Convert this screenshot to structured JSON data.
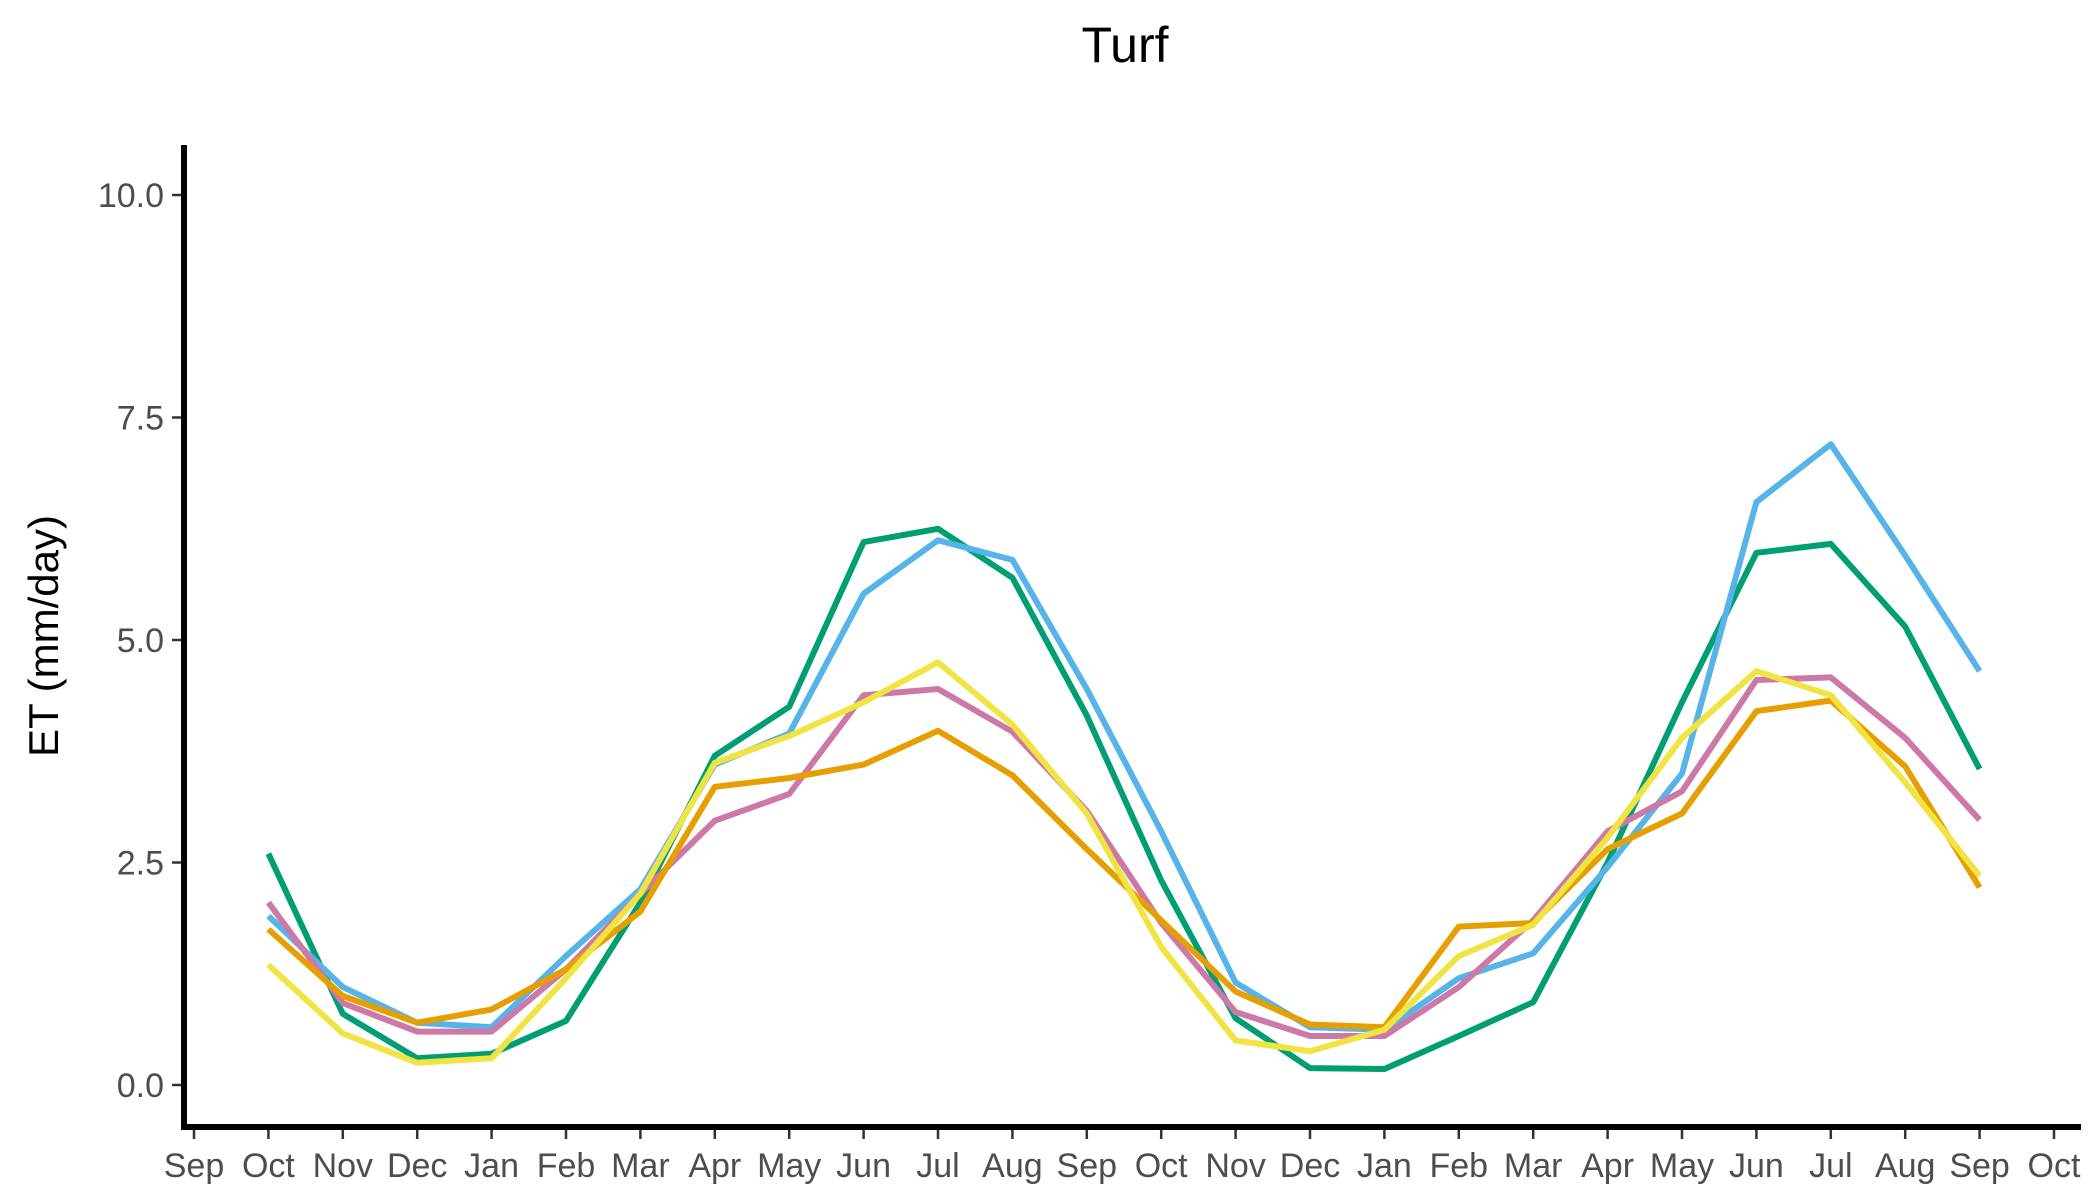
{
  "chart_data": {
    "type": "line",
    "title": "Turf",
    "xlabel": "",
    "ylabel": "ET (mm/day)",
    "x_ticks": [
      "Sep",
      "Oct",
      "Nov",
      "Dec",
      "Jan",
      "Feb",
      "Mar",
      "Apr",
      "May",
      "Jun",
      "Jul",
      "Aug",
      "Sep",
      "Oct",
      "Nov",
      "Dec",
      "Jan",
      "Feb",
      "Mar",
      "Apr",
      "May",
      "Jun",
      "Jul",
      "Aug",
      "Sep",
      "Oct"
    ],
    "x": [
      "Oct",
      "Nov",
      "Dec",
      "Jan",
      "Feb",
      "Mar",
      "Apr",
      "May",
      "Jun",
      "Jul",
      "Aug",
      "Sep",
      "Oct",
      "Nov",
      "Dec",
      "Jan",
      "Feb",
      "Mar",
      "Apr",
      "May",
      "Jun",
      "Jul",
      "Aug",
      "Sep"
    ],
    "y_ticks": [
      "0.0",
      "2.5",
      "5.0",
      "7.5",
      "10.0"
    ],
    "ylim": [
      0,
      10
    ],
    "grid": false,
    "legend": "none",
    "series": [
      {
        "color": "#009E73",
        "values": [
          2.6,
          0.8,
          0.3,
          0.35,
          0.72,
          2.05,
          3.7,
          4.25,
          6.1,
          6.25,
          5.7,
          4.15,
          2.3,
          0.75,
          0.19,
          0.18,
          0.55,
          0.93,
          2.5,
          4.3,
          5.98,
          6.08,
          5.15,
          3.55
        ]
      },
      {
        "color": "#56B4E9",
        "values": [
          1.9,
          1.1,
          0.7,
          0.65,
          1.45,
          2.2,
          3.6,
          3.95,
          5.52,
          6.12,
          5.9,
          4.45,
          2.85,
          1.15,
          0.65,
          0.62,
          1.2,
          1.48,
          2.45,
          3.5,
          6.55,
          7.2,
          5.95,
          4.65
        ]
      },
      {
        "color": "#CC79A7",
        "values": [
          2.05,
          0.92,
          0.6,
          0.6,
          1.3,
          2.15,
          2.97,
          3.27,
          4.38,
          4.45,
          3.97,
          3.08,
          1.82,
          0.82,
          0.55,
          0.55,
          1.1,
          1.85,
          2.85,
          3.3,
          4.55,
          4.58,
          3.9,
          2.98
        ]
      },
      {
        "color": "#E69F00",
        "values": [
          1.75,
          1.0,
          0.7,
          0.85,
          1.3,
          1.95,
          3.35,
          3.45,
          3.6,
          3.98,
          3.48,
          2.65,
          1.85,
          1.05,
          0.68,
          0.65,
          1.78,
          1.82,
          2.65,
          3.05,
          4.2,
          4.32,
          3.58,
          2.22
        ]
      },
      {
        "color": "#F0E442",
        "values": [
          1.35,
          0.58,
          0.25,
          0.3,
          1.2,
          2.15,
          3.62,
          3.92,
          4.3,
          4.75,
          4.05,
          3.05,
          1.55,
          0.5,
          0.38,
          0.62,
          1.45,
          1.8,
          2.78,
          3.9,
          4.65,
          4.38,
          3.4,
          2.35
        ]
      }
    ]
  }
}
